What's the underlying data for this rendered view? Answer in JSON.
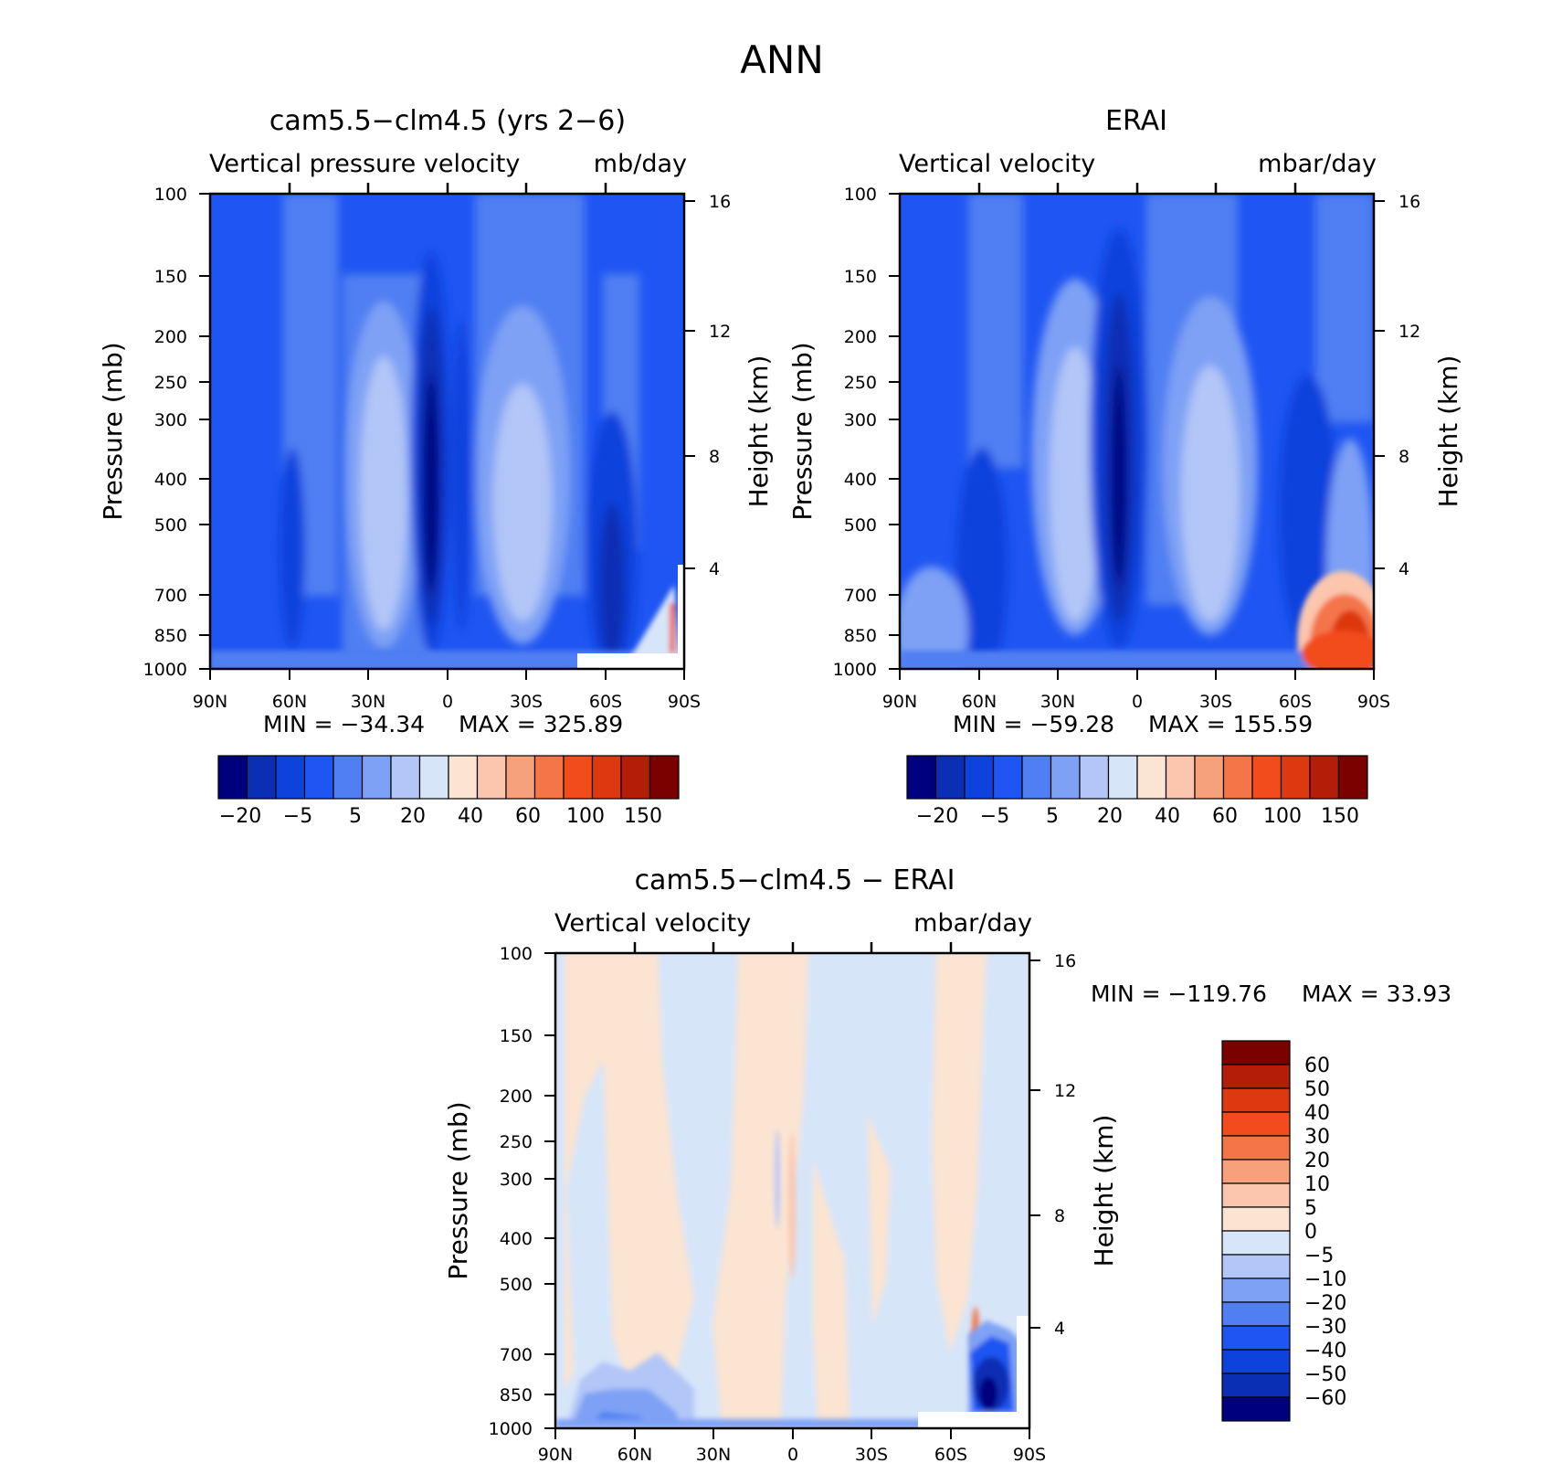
{
  "figure": {
    "title": "ANN"
  },
  "chart_data": [
    {
      "type": "heatmap",
      "title": "cam5.5−clm4.5 (yrs 2−6)",
      "subtitle_left": "Vertical pressure velocity",
      "subtitle_right": "mb/day",
      "xlabel": "",
      "ylabel": "Pressure (mb)",
      "ylabel_right": "Height (km)",
      "x_ticks": [
        "90N",
        "60N",
        "30N",
        "0",
        "30S",
        "60S",
        "90S"
      ],
      "y_ticks": [
        100,
        150,
        200,
        250,
        300,
        400,
        500,
        700,
        850,
        1000
      ],
      "y_ticks_right": [
        4,
        8,
        12,
        16
      ],
      "y_scale": "log",
      "min_label": "MIN = −34.34",
      "max_label": "MAX = 325.89",
      "colorbar_labels": [
        "−20",
        "−5",
        "5",
        "20",
        "40",
        "60",
        "100",
        "150"
      ],
      "colorbar_levels": [
        -20,
        -10,
        -5,
        0,
        5,
        10,
        20,
        30,
        40,
        50,
        60,
        80,
        100,
        120,
        150
      ],
      "colorbar_colors": [
        "#00007f",
        "#0a2fb4",
        "#0e42dd",
        "#1f55f2",
        "#4f7ff2",
        "#7ea1f5",
        "#b2c6f7",
        "#d7e5f9",
        "#fbe4d2",
        "#fbc6ad",
        "#f7a17c",
        "#f47548",
        "#f24b1c",
        "#dd3910",
        "#b21e08",
        "#7b0000"
      ]
    },
    {
      "type": "heatmap",
      "title": "ERAI",
      "subtitle_left": "Vertical velocity",
      "subtitle_right": "mbar/day",
      "xlabel": "",
      "ylabel": "Pressure (mb)",
      "ylabel_right": "Height (km)",
      "x_ticks": [
        "90N",
        "60N",
        "30N",
        "0",
        "30S",
        "60S",
        "90S"
      ],
      "y_ticks": [
        100,
        150,
        200,
        250,
        300,
        400,
        500,
        700,
        850,
        1000
      ],
      "y_ticks_right": [
        4,
        8,
        12,
        16
      ],
      "y_scale": "log",
      "min_label": "MIN = −59.28",
      "max_label": "MAX = 155.59",
      "colorbar_labels": [
        "−20",
        "−5",
        "5",
        "20",
        "40",
        "60",
        "100",
        "150"
      ],
      "colorbar_levels": [
        -20,
        -10,
        -5,
        0,
        5,
        10,
        20,
        30,
        40,
        50,
        60,
        80,
        100,
        120,
        150
      ],
      "colorbar_colors": [
        "#00007f",
        "#0a2fb4",
        "#0e42dd",
        "#1f55f2",
        "#4f7ff2",
        "#7ea1f5",
        "#b2c6f7",
        "#d7e5f9",
        "#fbe4d2",
        "#fbc6ad",
        "#f7a17c",
        "#f47548",
        "#f24b1c",
        "#dd3910",
        "#b21e08",
        "#7b0000"
      ]
    },
    {
      "type": "heatmap",
      "title": "cam5.5−clm4.5 − ERAI",
      "subtitle_left": "Vertical velocity",
      "subtitle_right": "mbar/day",
      "xlabel": "",
      "ylabel": "Pressure (mb)",
      "ylabel_right": "Height (km)",
      "x_ticks": [
        "90N",
        "60N",
        "30N",
        "0",
        "30S",
        "60S",
        "90S"
      ],
      "y_ticks": [
        100,
        150,
        200,
        250,
        300,
        400,
        500,
        700,
        850,
        1000
      ],
      "y_ticks_right": [
        4,
        8,
        12,
        16
      ],
      "y_scale": "log",
      "min_label": "MIN = −119.76",
      "max_label": "MAX =   33.93",
      "colorbar_labels": [
        "60",
        "50",
        "40",
        "30",
        "20",
        "10",
        "5",
        "0",
        "−5",
        "−10",
        "−20",
        "−30",
        "−40",
        "−50",
        "−60"
      ],
      "colorbar_colors": [
        "#7b0000",
        "#b21e08",
        "#dd3910",
        "#f24b1c",
        "#f47548",
        "#f7a17c",
        "#fbc6ad",
        "#fbe4d2",
        "#d7e5f9",
        "#b2c6f7",
        "#7ea1f5",
        "#4f7ff2",
        "#1f55f2",
        "#0e42dd",
        "#0a2fb4",
        "#00007f"
      ]
    }
  ]
}
